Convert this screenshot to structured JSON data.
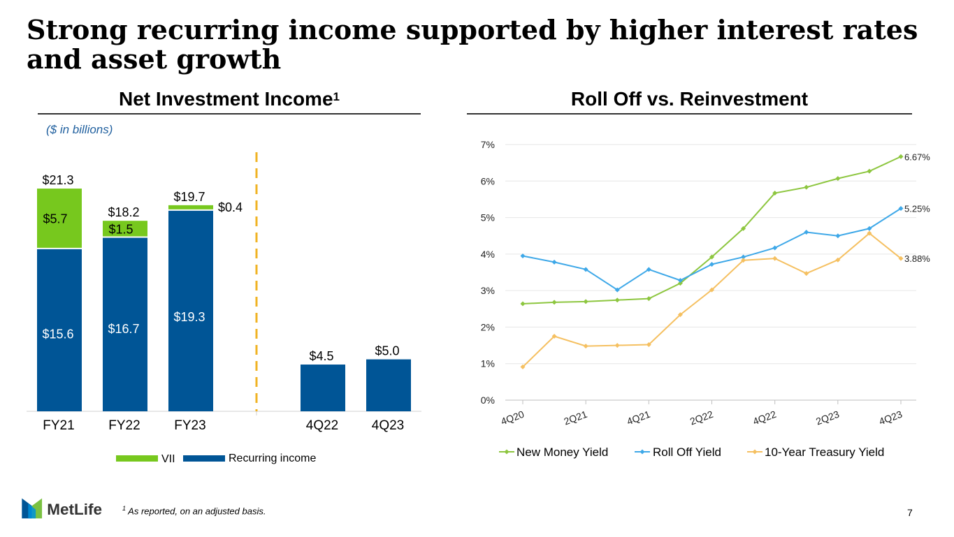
{
  "slide": {
    "title": "Strong recurring income supported by higher interest rates and asset growth",
    "page_number": "7",
    "footnote_marker": "1",
    "footnote": "As reported, on an adjusted basis.",
    "logo_text": "MetLife"
  },
  "colors": {
    "blue": "#005596",
    "green": "#77c81e",
    "divider": "#f0b323",
    "new_money": "#8dc63f",
    "roll_off": "#3ea8e8",
    "treasury": "#f5c061"
  },
  "chart_data": [
    {
      "type": "bar",
      "title": "Net Investment Income",
      "title_superscript": "1",
      "units_label": "($ in billions)",
      "categories": [
        "FY21",
        "FY22",
        "FY23",
        "",
        "4Q22",
        "4Q23"
      ],
      "series": [
        {
          "name": "Recurring income",
          "values": [
            15.6,
            16.7,
            19.3,
            null,
            4.5,
            5.0
          ],
          "labels": [
            "$15.6",
            "$16.7",
            "$19.3",
            "",
            "",
            ""
          ]
        },
        {
          "name": "VII",
          "values": [
            5.7,
            1.5,
            0.4,
            null,
            null,
            null
          ],
          "labels": [
            "$5.7",
            "$1.5",
            "$0.4",
            "",
            "",
            ""
          ]
        }
      ],
      "totals": [
        "$21.3",
        "$18.2",
        "$19.7",
        "",
        "$4.5",
        "$5.0"
      ],
      "legend": [
        "VII",
        "Recurring income"
      ],
      "ylim": [
        0,
        22.5
      ]
    },
    {
      "type": "line",
      "title": "Roll Off vs. Reinvestment",
      "x": [
        "4Q20",
        "1Q21",
        "2Q21",
        "3Q21",
        "4Q21",
        "1Q22",
        "2Q22",
        "3Q22",
        "4Q22",
        "1Q23",
        "2Q23",
        "3Q23",
        "4Q23"
      ],
      "x_tick_labels": [
        "4Q20",
        "2Q21",
        "4Q21",
        "2Q22",
        "4Q22",
        "2Q23",
        "4Q23"
      ],
      "y_tick_labels": [
        "0%",
        "1%",
        "2%",
        "3%",
        "4%",
        "5%",
        "6%",
        "7%"
      ],
      "ylim": [
        0,
        7
      ],
      "series": [
        {
          "name": "New Money Yield",
          "values": [
            2.64,
            2.68,
            2.7,
            2.74,
            2.78,
            3.2,
            3.92,
            4.7,
            5.67,
            5.83,
            6.07,
            6.27,
            6.67
          ],
          "end_label": "6.67%"
        },
        {
          "name": "Roll Off Yield",
          "values": [
            3.95,
            3.78,
            3.58,
            3.02,
            3.58,
            3.28,
            3.72,
            3.92,
            4.17,
            4.6,
            4.5,
            4.7,
            5.25
          ],
          "end_label": "5.25%"
        },
        {
          "name": "10-Year Treasury Yield",
          "values": [
            0.91,
            1.75,
            1.48,
            1.5,
            1.52,
            2.34,
            3.02,
            3.83,
            3.88,
            3.47,
            3.84,
            4.57,
            3.88
          ],
          "end_label": "3.88%"
        }
      ]
    }
  ]
}
